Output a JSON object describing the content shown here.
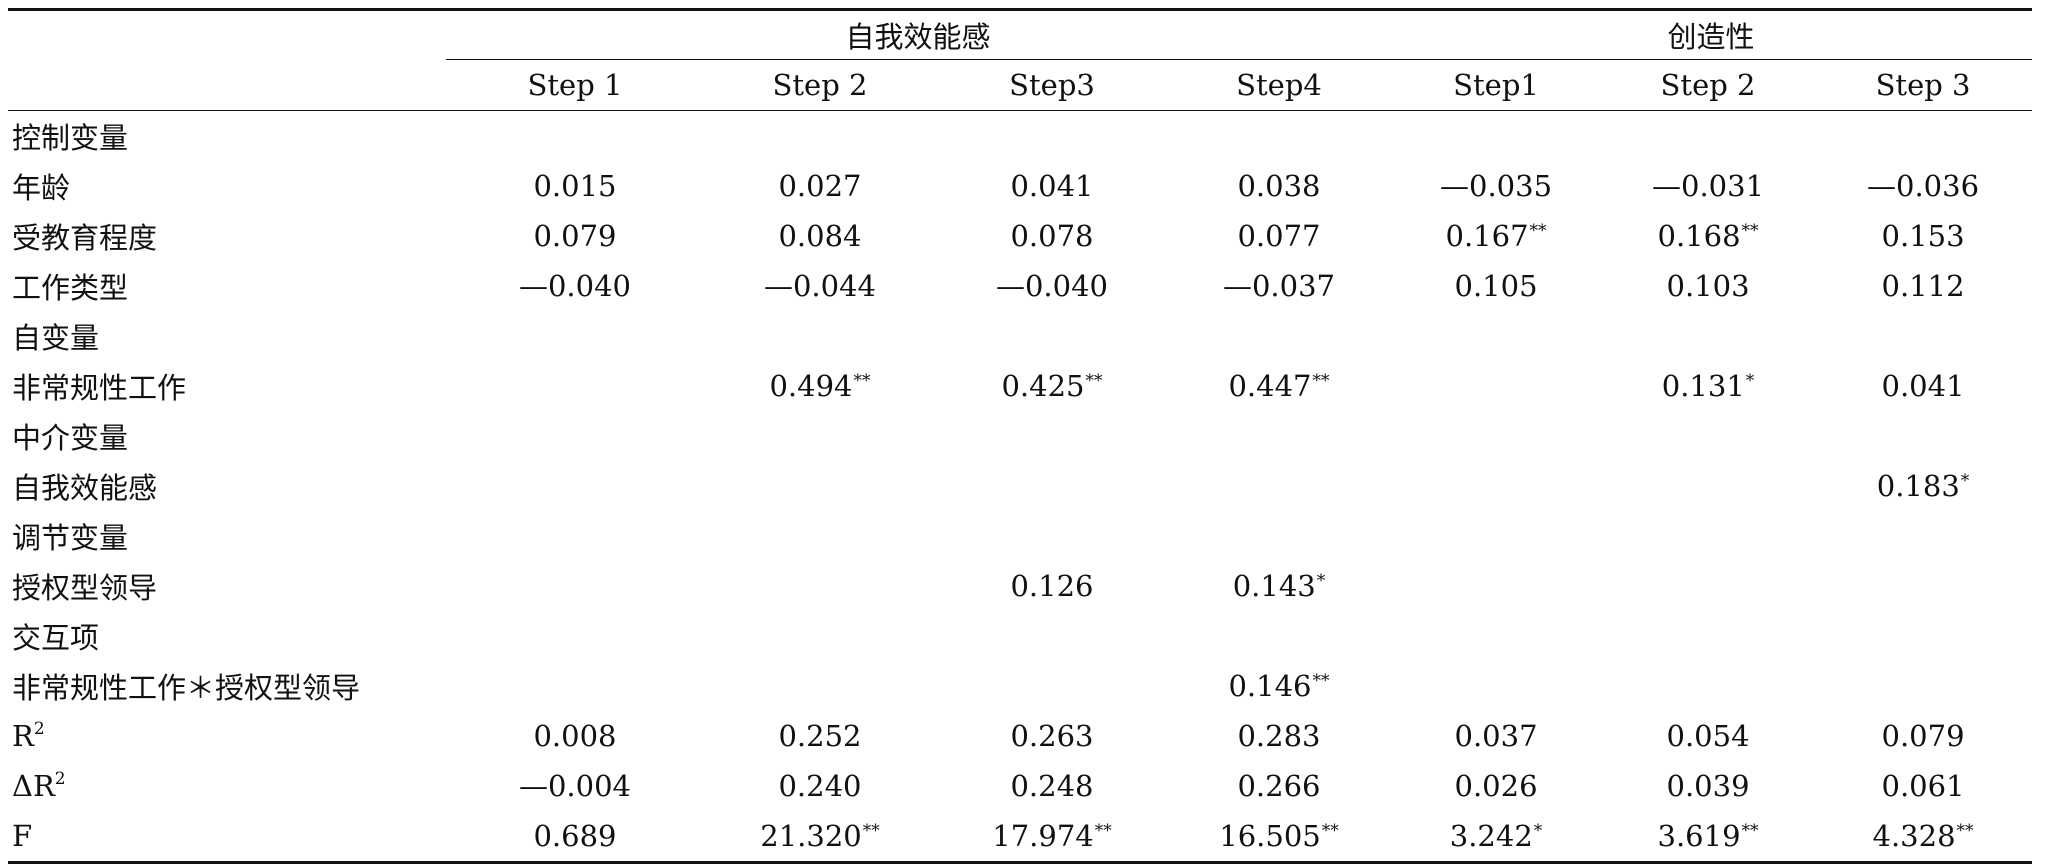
{
  "header": {
    "group1": "自我效能感",
    "group2": "创造性",
    "steps": [
      "Step 1",
      "Step 2",
      "Step3",
      "Step4",
      "Step1",
      "Step 2",
      "Step 3"
    ]
  },
  "rows": [
    {
      "label": "控制变量",
      "cells": [
        {
          "v": "",
          "s": ""
        },
        {
          "v": "",
          "s": ""
        },
        {
          "v": "",
          "s": ""
        },
        {
          "v": "",
          "s": ""
        },
        {
          "v": "",
          "s": ""
        },
        {
          "v": "",
          "s": ""
        },
        {
          "v": "",
          "s": ""
        }
      ]
    },
    {
      "label": "年龄",
      "cells": [
        {
          "v": "0.015",
          "s": ""
        },
        {
          "v": "0.027",
          "s": ""
        },
        {
          "v": "0.041",
          "s": ""
        },
        {
          "v": "0.038",
          "s": ""
        },
        {
          "v": "—0.035",
          "s": ""
        },
        {
          "v": "—0.031",
          "s": ""
        },
        {
          "v": "—0.036",
          "s": ""
        }
      ]
    },
    {
      "label": "受教育程度",
      "cells": [
        {
          "v": "0.079",
          "s": ""
        },
        {
          "v": "0.084",
          "s": ""
        },
        {
          "v": "0.078",
          "s": ""
        },
        {
          "v": "0.077",
          "s": ""
        },
        {
          "v": "0.167",
          "s": "**"
        },
        {
          "v": "0.168",
          "s": "**"
        },
        {
          "v": "0.153",
          "s": ""
        }
      ]
    },
    {
      "label": "工作类型",
      "cells": [
        {
          "v": "—0.040",
          "s": ""
        },
        {
          "v": "—0.044",
          "s": ""
        },
        {
          "v": "—0.040",
          "s": ""
        },
        {
          "v": "—0.037",
          "s": ""
        },
        {
          "v": "0.105",
          "s": ""
        },
        {
          "v": "0.103",
          "s": ""
        },
        {
          "v": "0.112",
          "s": ""
        }
      ]
    },
    {
      "label": "自变量",
      "cells": [
        {
          "v": "",
          "s": ""
        },
        {
          "v": "",
          "s": ""
        },
        {
          "v": "",
          "s": ""
        },
        {
          "v": "",
          "s": ""
        },
        {
          "v": "",
          "s": ""
        },
        {
          "v": "",
          "s": ""
        },
        {
          "v": "",
          "s": ""
        }
      ]
    },
    {
      "label": "非常规性工作",
      "cells": [
        {
          "v": "",
          "s": ""
        },
        {
          "v": "0.494",
          "s": "**"
        },
        {
          "v": "0.425",
          "s": "**"
        },
        {
          "v": "0.447",
          "s": "**"
        },
        {
          "v": "",
          "s": ""
        },
        {
          "v": "0.131",
          "s": "*"
        },
        {
          "v": "0.041",
          "s": ""
        }
      ]
    },
    {
      "label": "中介变量",
      "cells": [
        {
          "v": "",
          "s": ""
        },
        {
          "v": "",
          "s": ""
        },
        {
          "v": "",
          "s": ""
        },
        {
          "v": "",
          "s": ""
        },
        {
          "v": "",
          "s": ""
        },
        {
          "v": "",
          "s": ""
        },
        {
          "v": "",
          "s": ""
        }
      ]
    },
    {
      "label": "自我效能感",
      "cells": [
        {
          "v": "",
          "s": ""
        },
        {
          "v": "",
          "s": ""
        },
        {
          "v": "",
          "s": ""
        },
        {
          "v": "",
          "s": ""
        },
        {
          "v": "",
          "s": ""
        },
        {
          "v": "",
          "s": ""
        },
        {
          "v": "0.183",
          "s": "*"
        }
      ]
    },
    {
      "label": "调节变量",
      "cells": [
        {
          "v": "",
          "s": ""
        },
        {
          "v": "",
          "s": ""
        },
        {
          "v": "",
          "s": ""
        },
        {
          "v": "",
          "s": ""
        },
        {
          "v": "",
          "s": ""
        },
        {
          "v": "",
          "s": ""
        },
        {
          "v": "",
          "s": ""
        }
      ]
    },
    {
      "label": "授权型领导",
      "cells": [
        {
          "v": "",
          "s": ""
        },
        {
          "v": "",
          "s": ""
        },
        {
          "v": "0.126",
          "s": ""
        },
        {
          "v": "0.143",
          "s": "*"
        },
        {
          "v": "",
          "s": ""
        },
        {
          "v": "",
          "s": ""
        },
        {
          "v": "",
          "s": ""
        }
      ]
    },
    {
      "label": "交互项",
      "cells": [
        {
          "v": "",
          "s": ""
        },
        {
          "v": "",
          "s": ""
        },
        {
          "v": "",
          "s": ""
        },
        {
          "v": "",
          "s": ""
        },
        {
          "v": "",
          "s": ""
        },
        {
          "v": "",
          "s": ""
        },
        {
          "v": "",
          "s": ""
        }
      ]
    },
    {
      "label": "非常规性工作＊授权型领导",
      "cells": [
        {
          "v": "",
          "s": ""
        },
        {
          "v": "",
          "s": ""
        },
        {
          "v": "",
          "s": ""
        },
        {
          "v": "0.146",
          "s": "**"
        },
        {
          "v": "",
          "s": ""
        },
        {
          "v": "",
          "s": ""
        },
        {
          "v": "",
          "s": ""
        }
      ]
    },
    {
      "label": "R",
      "sup": "2",
      "cells": [
        {
          "v": "0.008",
          "s": ""
        },
        {
          "v": "0.252",
          "s": ""
        },
        {
          "v": "0.263",
          "s": ""
        },
        {
          "v": "0.283",
          "s": ""
        },
        {
          "v": "0.037",
          "s": ""
        },
        {
          "v": "0.054",
          "s": ""
        },
        {
          "v": "0.079",
          "s": ""
        }
      ]
    },
    {
      "label": "ΔR",
      "sup": "2",
      "cells": [
        {
          "v": "—0.004",
          "s": ""
        },
        {
          "v": "0.240",
          "s": ""
        },
        {
          "v": "0.248",
          "s": ""
        },
        {
          "v": "0.266",
          "s": ""
        },
        {
          "v": "0.026",
          "s": ""
        },
        {
          "v": "0.039",
          "s": ""
        },
        {
          "v": "0.061",
          "s": ""
        }
      ]
    },
    {
      "label": "F",
      "cells": [
        {
          "v": "0.689",
          "s": ""
        },
        {
          "v": "21.320",
          "s": "**"
        },
        {
          "v": "17.974",
          "s": "**"
        },
        {
          "v": "16.505",
          "s": "**"
        },
        {
          "v": "3.242",
          "s": "*"
        },
        {
          "v": "3.619",
          "s": "**"
        },
        {
          "v": "4.328",
          "s": "**"
        }
      ]
    }
  ]
}
